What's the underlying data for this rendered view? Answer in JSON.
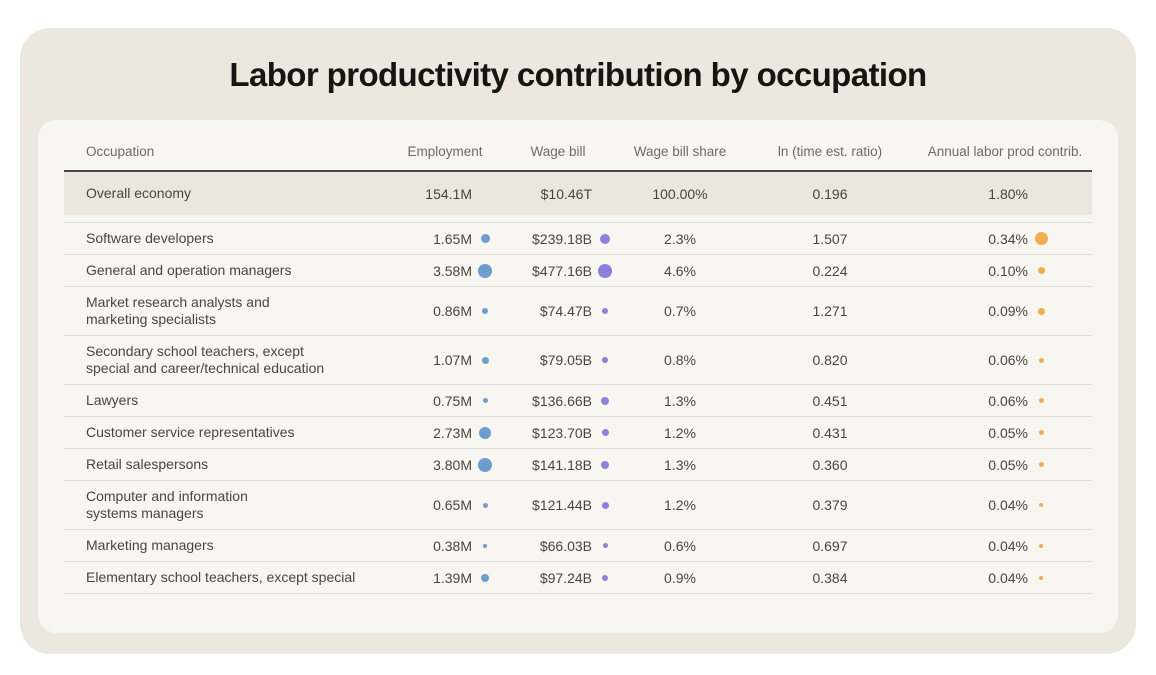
{
  "title": "Labor productivity contribution by occupation",
  "colors": {
    "employment_dot": "#6D9CCE",
    "wage_bill_dot": "#8B80DD",
    "contrib_dot": "#F2AD4C",
    "outer_card_bg": "#ECE8DF",
    "inner_card_bg": "#F8F6F0",
    "highlight_row_bg": "#EBE7DE"
  },
  "chart_data": {
    "type": "table",
    "title": "Labor productivity contribution by occupation",
    "columns": [
      "Occupation",
      "Employment",
      "Wage bill",
      "Wage bill share",
      "ln (time est. ratio)",
      "Annual labor prod contrib."
    ],
    "overall": {
      "occupation": "Overall economy",
      "employment": "154.1M",
      "wage_bill": "$10.46T",
      "wage_bill_share": "100.00%",
      "ln_time_est_ratio": "0.196",
      "annual_contrib": "1.80%"
    },
    "rows": [
      {
        "occupation": "Software developers",
        "employment": "1.65M",
        "employment_millions": 1.65,
        "wage_bill": "$239.18B",
        "wage_bill_billions": 239.18,
        "wage_bill_share": "2.3%",
        "ln_time_est_ratio": "1.507",
        "annual_contrib": "0.34%",
        "annual_contrib_pct": 0.34
      },
      {
        "occupation": "General and operation managers",
        "employment": "3.58M",
        "employment_millions": 3.58,
        "wage_bill": "$477.16B",
        "wage_bill_billions": 477.16,
        "wage_bill_share": "4.6%",
        "ln_time_est_ratio": "0.224",
        "annual_contrib": "0.10%",
        "annual_contrib_pct": 0.1
      },
      {
        "occupation": "Market research analysts and\nmarketing specialists",
        "employment": "0.86M",
        "employment_millions": 0.86,
        "wage_bill": "$74.47B",
        "wage_bill_billions": 74.47,
        "wage_bill_share": "0.7%",
        "ln_time_est_ratio": "1.271",
        "annual_contrib": "0.09%",
        "annual_contrib_pct": 0.09
      },
      {
        "occupation": "Secondary school teachers, except\nspecial and career/technical education",
        "employment": "1.07M",
        "employment_millions": 1.07,
        "wage_bill": "$79.05B",
        "wage_bill_billions": 79.05,
        "wage_bill_share": "0.8%",
        "ln_time_est_ratio": "0.820",
        "annual_contrib": "0.06%",
        "annual_contrib_pct": 0.06
      },
      {
        "occupation": "Lawyers",
        "employment": "0.75M",
        "employment_millions": 0.75,
        "wage_bill": "$136.66B",
        "wage_bill_billions": 136.66,
        "wage_bill_share": "1.3%",
        "ln_time_est_ratio": "0.451",
        "annual_contrib": "0.06%",
        "annual_contrib_pct": 0.06
      },
      {
        "occupation": "Customer service representatives",
        "employment": "2.73M",
        "employment_millions": 2.73,
        "wage_bill": "$123.70B",
        "wage_bill_billions": 123.7,
        "wage_bill_share": "1.2%",
        "ln_time_est_ratio": "0.431",
        "annual_contrib": "0.05%",
        "annual_contrib_pct": 0.05
      },
      {
        "occupation": "Retail salespersons",
        "employment": "3.80M",
        "employment_millions": 3.8,
        "wage_bill": "$141.18B",
        "wage_bill_billions": 141.18,
        "wage_bill_share": "1.3%",
        "ln_time_est_ratio": "0.360",
        "annual_contrib": "0.05%",
        "annual_contrib_pct": 0.05
      },
      {
        "occupation": "Computer and information\nsystems managers",
        "employment": "0.65M",
        "employment_millions": 0.65,
        "wage_bill": "$121.44B",
        "wage_bill_billions": 121.44,
        "wage_bill_share": "1.2%",
        "ln_time_est_ratio": "0.379",
        "annual_contrib": "0.04%",
        "annual_contrib_pct": 0.04
      },
      {
        "occupation": "Marketing managers",
        "employment": "0.38M",
        "employment_millions": 0.38,
        "wage_bill": "$66.03B",
        "wage_bill_billions": 66.03,
        "wage_bill_share": "0.6%",
        "ln_time_est_ratio": "0.697",
        "annual_contrib": "0.04%",
        "annual_contrib_pct": 0.04
      },
      {
        "occupation": "Elementary school teachers, except special",
        "employment": "1.39M",
        "employment_millions": 1.39,
        "wage_bill": "$97.24B",
        "wage_bill_billions": 97.24,
        "wage_bill_share": "0.9%",
        "ln_time_est_ratio": "0.384",
        "annual_contrib": "0.04%",
        "annual_contrib_pct": 0.04
      }
    ]
  }
}
